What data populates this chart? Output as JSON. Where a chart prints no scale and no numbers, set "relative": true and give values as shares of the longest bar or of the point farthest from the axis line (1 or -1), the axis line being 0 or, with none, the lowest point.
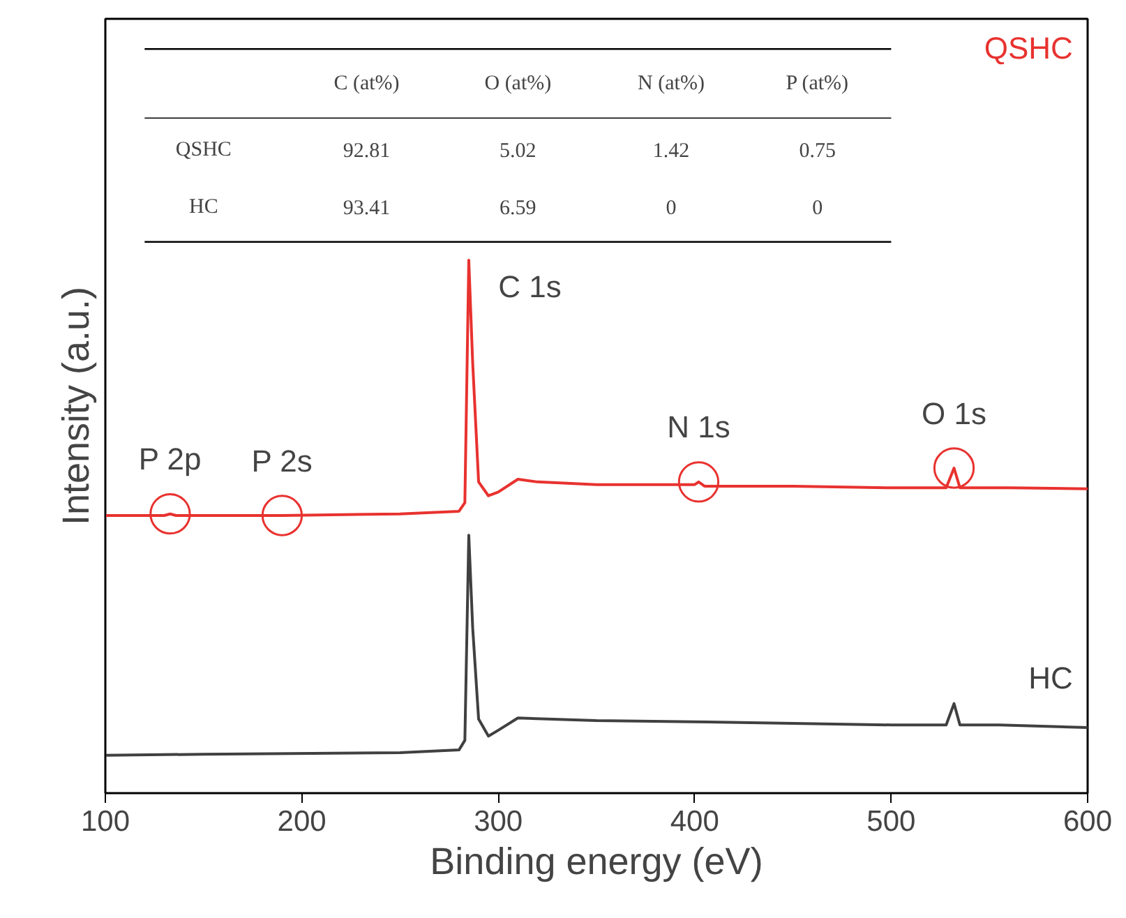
{
  "chart_data": {
    "type": "line",
    "relative": true,
    "xlabel": "Binding energy (eV)",
    "ylabel": "Intensity (a.u.)",
    "xlim": [
      100,
      600
    ],
    "xticks": [
      100,
      200,
      300,
      400,
      500,
      600
    ],
    "grid": false,
    "tick_labels": "x",
    "series": [
      {
        "name": "QSHC",
        "color": "#e8322f",
        "x": [
          100,
          130,
          133,
          136,
          190,
          250,
          280,
          283,
          285,
          287,
          290,
          295,
          300,
          310,
          320,
          350,
          400,
          402,
          405,
          450,
          500,
          528,
          532,
          535,
          560,
          600
        ],
        "values": [
          0.521,
          0.521,
          0.524,
          0.521,
          0.521,
          0.524,
          0.529,
          0.545,
          1.0,
          0.806,
          0.584,
          0.558,
          0.565,
          0.589,
          0.584,
          0.579,
          0.579,
          0.584,
          0.576,
          0.576,
          0.573,
          0.573,
          0.61,
          0.573,
          0.573,
          0.571
        ]
      },
      {
        "name": "HC",
        "color": "#404040",
        "x": [
          100,
          150,
          250,
          280,
          283,
          285,
          287,
          290,
          295,
          300,
          310,
          350,
          400,
          450,
          500,
          528,
          532,
          535,
          555,
          600
        ],
        "values": [
          0.071,
          0.073,
          0.076,
          0.081,
          0.099,
          0.484,
          0.309,
          0.139,
          0.107,
          0.118,
          0.141,
          0.136,
          0.134,
          0.131,
          0.128,
          0.128,
          0.168,
          0.128,
          0.128,
          0.123
        ]
      }
    ],
    "annotations": [
      {
        "text": "P 2p",
        "x": 133,
        "y": 0.524
      },
      {
        "text": "P 2s",
        "x": 190,
        "y": 0.521
      },
      {
        "text": "C 1s",
        "x": 285,
        "y": 1.0
      },
      {
        "text": "N 1s",
        "x": 402,
        "y": 0.584
      },
      {
        "text": "O 1s",
        "x": 532,
        "y": 0.61
      },
      "C (at%)",
      "O (at%)",
      "N (at%)",
      "P (at%)",
      "QSHC",
      "92.81",
      "5.02",
      "1.42",
      "0.75",
      "HC",
      "93.41",
      "6.59",
      "0",
      "0"
    ]
  }
}
